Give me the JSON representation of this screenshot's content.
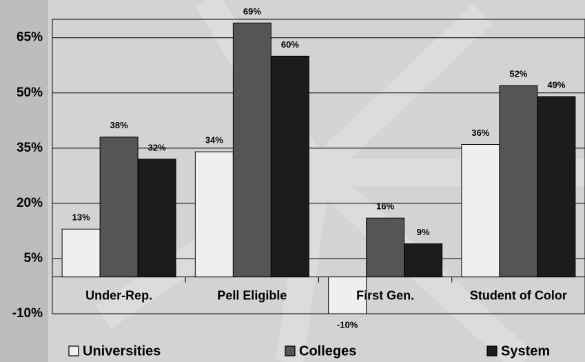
{
  "chart_data": {
    "type": "bar",
    "categories": [
      "Under-Rep.",
      "Pell Eligible",
      "First Gen.",
      "Student of Color"
    ],
    "series": [
      {
        "name": "Universities",
        "color": "#efefef",
        "values": [
          13,
          34,
          -10,
          36
        ],
        "value_labels": [
          "13%",
          "34%",
          "-10%",
          "36%"
        ]
      },
      {
        "name": "Colleges",
        "color": "#555555",
        "values": [
          38,
          69,
          16,
          52
        ],
        "value_labels": [
          "38%",
          "69%",
          "16%",
          "52%"
        ]
      },
      {
        "name": "System",
        "color": "#1c1c1c",
        "values": [
          32,
          60,
          9,
          49
        ],
        "value_labels": [
          "32%",
          "60%",
          "9%",
          "49%"
        ]
      }
    ],
    "ylim": [
      -10,
      70
    ],
    "yticks": [
      {
        "value": -10,
        "label": "-10%"
      },
      {
        "value": 5,
        "label": "5%"
      },
      {
        "value": 20,
        "label": "20%"
      },
      {
        "value": 35,
        "label": "35%"
      },
      {
        "value": 50,
        "label": "50%"
      },
      {
        "value": 65,
        "label": "65%"
      }
    ],
    "grid": true
  }
}
